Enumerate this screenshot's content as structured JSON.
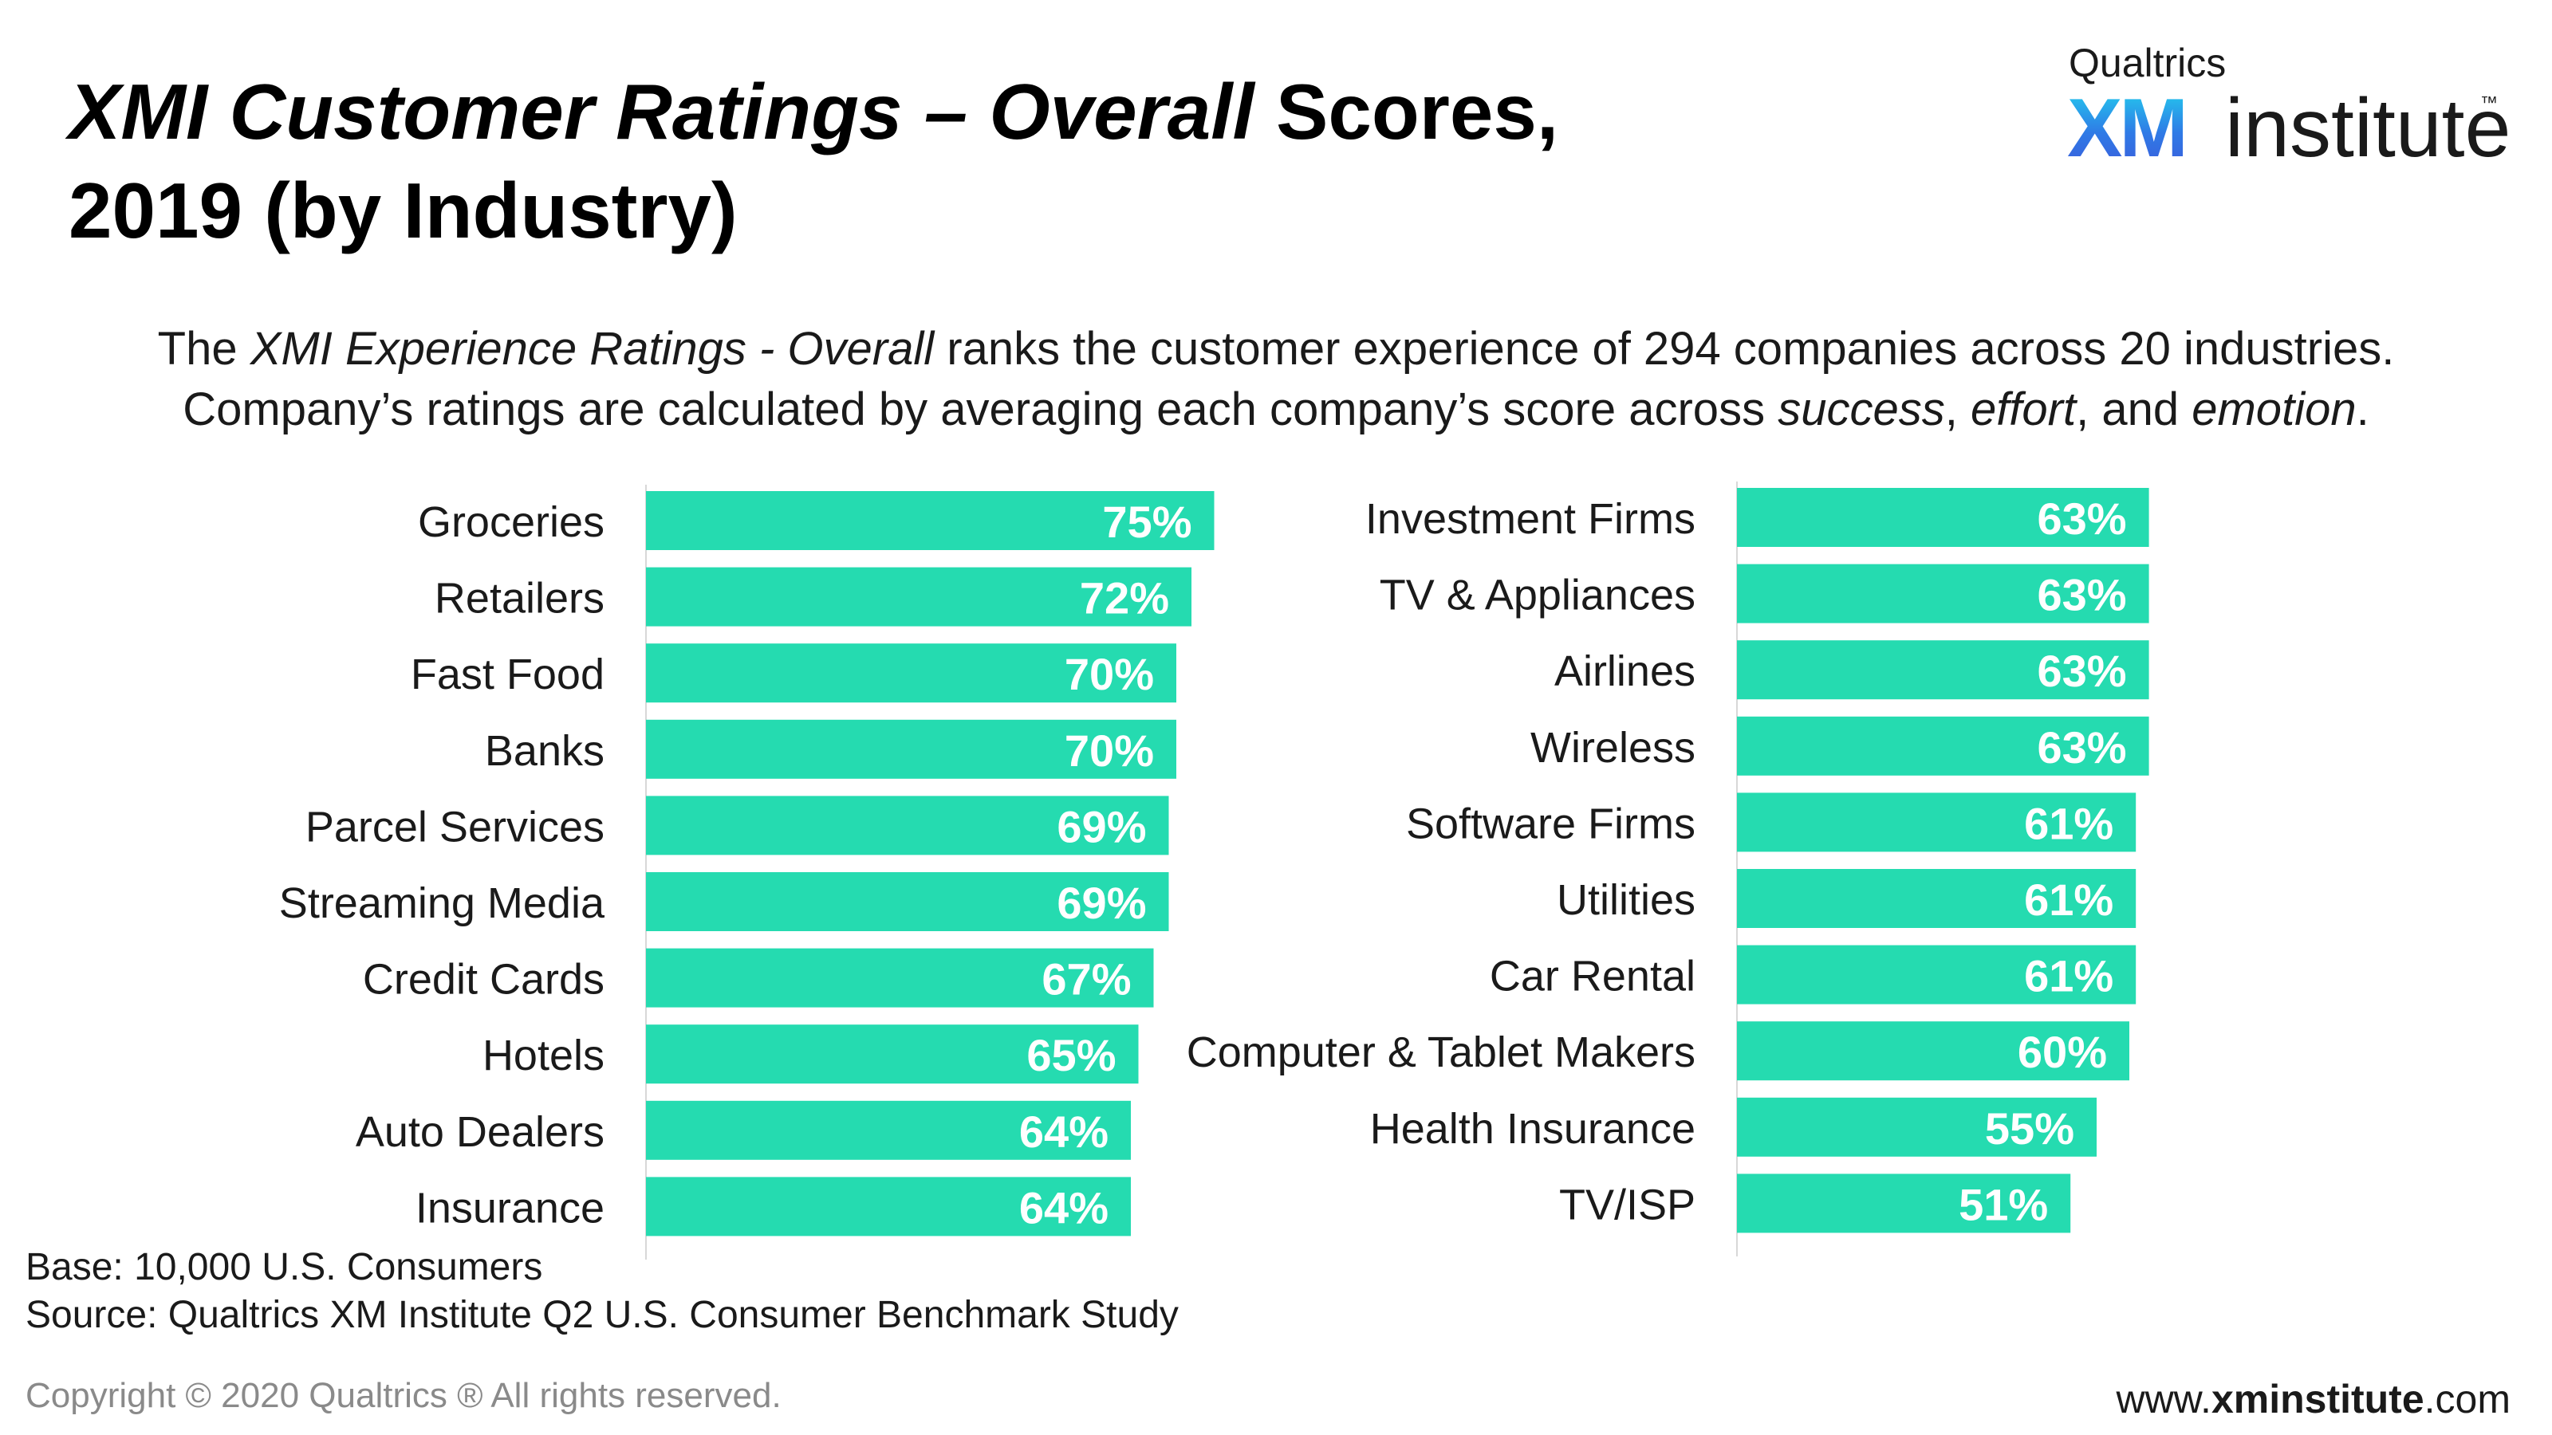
{
  "title": {
    "part1": "XMI Customer Ratings – Overall",
    "part2": " Scores,",
    "line2": "2019 (by Industry)"
  },
  "logo": {
    "brand": "Qualtrics",
    "xm": "XM",
    "institute": "institute",
    "tm": "™"
  },
  "description": {
    "line1_pre": "The ",
    "line1_italic": "XMI Experience Ratings - Overall",
    "line1_post": " ranks the customer experience of 294 companies across 20 industries.",
    "line2_pre": "Company’s ratings are calculated by averaging each company’s score across ",
    "success": "success",
    "comma1": ", ",
    "effort": "effort",
    "and": ", and ",
    "emotion": "emotion",
    "period": "."
  },
  "chart_data": [
    {
      "type": "bar",
      "orientation": "horizontal",
      "categories": [
        "Groceries",
        "Retailers",
        "Fast Food",
        "Banks",
        "Parcel Services",
        "Streaming Media",
        "Credit Cards",
        "Hotels",
        "Auto Dealers",
        "Insurance"
      ],
      "values": [
        75,
        72,
        70,
        70,
        69,
        69,
        67,
        65,
        64,
        64
      ],
      "labels": [
        "75%",
        "72%",
        "70%",
        "70%",
        "69%",
        "69%",
        "67%",
        "65%",
        "64%",
        "64%"
      ],
      "color": "#25dbb0"
    },
    {
      "type": "bar",
      "orientation": "horizontal",
      "categories": [
        "Investment Firms",
        "TV & Appliances",
        "Airlines",
        "Wireless",
        "Software Firms",
        "Utilities",
        "Car Rental",
        "Computer & Tablet Makers",
        "Health Insurance",
        "TV/ISP"
      ],
      "values": [
        63,
        63,
        63,
        63,
        61,
        61,
        61,
        60,
        55,
        51
      ],
      "labels": [
        "63%",
        "63%",
        "63%",
        "63%",
        "61%",
        "61%",
        "61%",
        "60%",
        "55%",
        "51%"
      ],
      "color": "#25dbb0"
    }
  ],
  "footer": {
    "base": "Base: 10,000 U.S. Consumers",
    "source": "Source: Qualtrics XM Institute Q2 U.S. Consumer Benchmark Study",
    "copyright": "Copyright © 2020 Qualtrics ® All rights reserved.",
    "web_pre": "www.",
    "web_bold": "xminstitute",
    "web_post": ".com"
  }
}
